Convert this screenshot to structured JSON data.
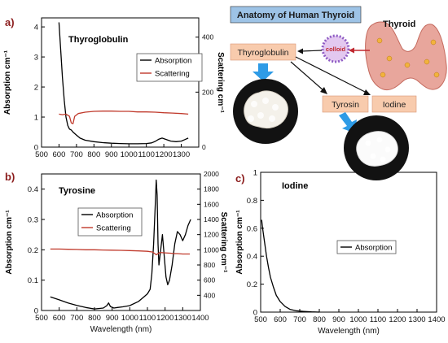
{
  "panel_labels": {
    "a": "a)",
    "b": "b)",
    "c": "c)"
  },
  "schematic": {
    "title": "Anatomy of Human Thyroid",
    "thyroid_label": "Thyroid",
    "colloid_label": "colloid",
    "thyroglobulin_box": "Thyroglobulin",
    "tyrosin_box": "Tyrosin",
    "iodine_box": "Iodine",
    "colors": {
      "title_bg": "#9dc3e6",
      "box_bg": "#f8cbad",
      "arrow_blue": "#2e9be6",
      "gland": "#e8a69c",
      "colloid_ring": "#8e5cc4",
      "photo_bg": "#121212",
      "powder": "#f4f1ea"
    }
  },
  "chart_data": [
    {
      "type": "line",
      "title": "Thyroglobulin",
      "xlabel": "",
      "ylabel": "Absorption cm⁻¹",
      "y2label": "Scattering cm⁻¹",
      "xlim": [
        500,
        1400
      ],
      "ylim": [
        0,
        4.3
      ],
      "y2lim": [
        0,
        470
      ],
      "xticks": [
        500,
        600,
        700,
        800,
        900,
        1000,
        1100,
        1200,
        1300
      ],
      "yticks": [
        0,
        1,
        2,
        3,
        4
      ],
      "y2ticks": [
        0,
        200,
        400
      ],
      "legend_position": "right",
      "series": [
        {
          "name": "Absorption",
          "axis": "left",
          "color": "#000000",
          "points": [
            [
              600,
              4.15
            ],
            [
              610,
              3.2
            ],
            [
              620,
              2.3
            ],
            [
              630,
              1.55
            ],
            [
              640,
              1.0
            ],
            [
              650,
              0.72
            ],
            [
              660,
              0.6
            ],
            [
              670,
              0.57
            ],
            [
              680,
              0.5
            ],
            [
              700,
              0.4
            ],
            [
              720,
              0.3
            ],
            [
              750,
              0.23
            ],
            [
              800,
              0.18
            ],
            [
              850,
              0.15
            ],
            [
              900,
              0.13
            ],
            [
              950,
              0.12
            ],
            [
              1000,
              0.11
            ],
            [
              1050,
              0.11
            ],
            [
              1100,
              0.12
            ],
            [
              1130,
              0.14
            ],
            [
              1150,
              0.19
            ],
            [
              1170,
              0.26
            ],
            [
              1190,
              0.3
            ],
            [
              1210,
              0.26
            ],
            [
              1240,
              0.2
            ],
            [
              1270,
              0.18
            ],
            [
              1300,
              0.2
            ],
            [
              1320,
              0.25
            ],
            [
              1340,
              0.3
            ]
          ]
        },
        {
          "name": "Scattering",
          "axis": "right",
          "color": "#c0392b",
          "points": [
            [
              600,
              120
            ],
            [
              620,
              118
            ],
            [
              640,
              120
            ],
            [
              660,
              112
            ],
            [
              670,
              88
            ],
            [
              680,
              85
            ],
            [
              690,
              112
            ],
            [
              710,
              122
            ],
            [
              750,
              127
            ],
            [
              800,
              130
            ],
            [
              850,
              131
            ],
            [
              900,
              131
            ],
            [
              950,
              130
            ],
            [
              1000,
              130
            ],
            [
              1050,
              128
            ],
            [
              1100,
              128
            ],
            [
              1150,
              127
            ],
            [
              1200,
              125
            ],
            [
              1250,
              124
            ],
            [
              1300,
              122
            ],
            [
              1340,
              120
            ]
          ]
        }
      ]
    },
    {
      "type": "line",
      "title": "Tyrosine",
      "xlabel": "Wavelength (nm)",
      "ylabel": "Absorption cm⁻¹",
      "y2label": "Scattering cm⁻¹",
      "xlim": [
        500,
        1400
      ],
      "ylim": [
        0,
        0.45
      ],
      "y2lim": [
        200,
        2000
      ],
      "xticks": [
        500,
        600,
        700,
        800,
        900,
        1000,
        1100,
        1200,
        1300,
        1400
      ],
      "yticks": [
        0.0,
        0.1,
        0.2,
        0.3,
        0.4
      ],
      "y2ticks": [
        400,
        600,
        800,
        1000,
        1200,
        1400,
        1600,
        1800,
        2000
      ],
      "legend_position": "upper-center",
      "series": [
        {
          "name": "Absorption",
          "axis": "left",
          "color": "#000000",
          "points": [
            [
              550,
              0.045
            ],
            [
              600,
              0.035
            ],
            [
              650,
              0.025
            ],
            [
              700,
              0.017
            ],
            [
              750,
              0.01
            ],
            [
              800,
              0.005
            ],
            [
              850,
              0.008
            ],
            [
              870,
              0.016
            ],
            [
              880,
              0.025
            ],
            [
              890,
              0.013
            ],
            [
              910,
              0.008
            ],
            [
              930,
              0.01
            ],
            [
              960,
              0.012
            ],
            [
              1000,
              0.016
            ],
            [
              1050,
              0.03
            ],
            [
              1080,
              0.045
            ],
            [
              1100,
              0.055
            ],
            [
              1115,
              0.07
            ],
            [
              1125,
              0.12
            ],
            [
              1135,
              0.22
            ],
            [
              1145,
              0.36
            ],
            [
              1150,
              0.43
            ],
            [
              1155,
              0.38
            ],
            [
              1160,
              0.22
            ],
            [
              1165,
              0.15
            ],
            [
              1175,
              0.2
            ],
            [
              1185,
              0.25
            ],
            [
              1195,
              0.18
            ],
            [
              1205,
              0.11
            ],
            [
              1215,
              0.085
            ],
            [
              1225,
              0.1
            ],
            [
              1240,
              0.15
            ],
            [
              1255,
              0.22
            ],
            [
              1270,
              0.26
            ],
            [
              1285,
              0.25
            ],
            [
              1300,
              0.23
            ],
            [
              1315,
              0.25
            ],
            [
              1330,
              0.28
            ],
            [
              1345,
              0.3
            ]
          ]
        },
        {
          "name": "Scattering",
          "axis": "right",
          "color": "#c0392b",
          "points": [
            [
              550,
              1010
            ],
            [
              600,
              1010
            ],
            [
              650,
              1007
            ],
            [
              700,
              1005
            ],
            [
              750,
              1000
            ],
            [
              800,
              1000
            ],
            [
              850,
              997
            ],
            [
              900,
              995
            ],
            [
              950,
              993
            ],
            [
              1000,
              990
            ],
            [
              1050,
              985
            ],
            [
              1100,
              980
            ],
            [
              1130,
              970
            ],
            [
              1150,
              935
            ],
            [
              1170,
              965
            ],
            [
              1200,
              960
            ],
            [
              1230,
              955
            ],
            [
              1250,
              950
            ],
            [
              1270,
              950
            ],
            [
              1300,
              945
            ],
            [
              1340,
              945
            ]
          ]
        }
      ]
    },
    {
      "type": "line",
      "title": "Iodine",
      "xlabel": "Wavelength (nm)",
      "ylabel": "Absorption cm⁻¹",
      "xlim": [
        500,
        1400
      ],
      "ylim": [
        0,
        1.0
      ],
      "xticks": [
        500,
        600,
        700,
        800,
        900,
        1000,
        1100,
        1200,
        1300,
        1400
      ],
      "yticks": [
        0.0,
        0.2,
        0.4,
        0.6,
        0.8,
        1.0
      ],
      "legend_position": "center-right",
      "series": [
        {
          "name": "Absorption",
          "axis": "left",
          "color": "#000000",
          "points": [
            [
              505,
              0.66
            ],
            [
              510,
              0.6
            ],
            [
              520,
              0.5
            ],
            [
              530,
              0.4
            ],
            [
              540,
              0.32
            ],
            [
              550,
              0.25
            ],
            [
              565,
              0.18
            ],
            [
              580,
              0.12
            ],
            [
              600,
              0.075
            ],
            [
              625,
              0.04
            ],
            [
              650,
              0.02
            ],
            [
              680,
              0.01
            ],
            [
              720,
              0.005
            ],
            [
              760,
              0.002
            ],
            [
              800,
              0.0
            ]
          ]
        }
      ]
    }
  ]
}
